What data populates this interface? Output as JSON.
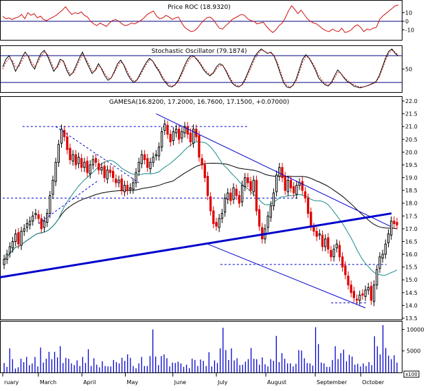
{
  "chart_data": [
    {
      "type": "line",
      "title": "Price ROC (18.9320)",
      "yticks": [
        10,
        0,
        -10
      ],
      "reference_line": 0,
      "ylim": [
        -20,
        20
      ],
      "series": [
        {
          "values": [
            6,
            3,
            4,
            2,
            4,
            5,
            8,
            3,
            10,
            7,
            9,
            4,
            6,
            2,
            1,
            3,
            5,
            7,
            10,
            13,
            17,
            12,
            8,
            10,
            9,
            11,
            7,
            5,
            0,
            -3,
            -5,
            -2,
            -4,
            -6,
            -2,
            1,
            2,
            0,
            -3,
            -5,
            -4,
            -2,
            -3,
            -1,
            1,
            4,
            8,
            10,
            12,
            6,
            3,
            4,
            7,
            5,
            2,
            4,
            5,
            -2,
            -7,
            -10,
            -12,
            -11,
            -8,
            -3,
            1,
            4,
            5,
            2,
            -3,
            -8,
            -9,
            -5,
            -2,
            2,
            4,
            6,
            8,
            7,
            3,
            1,
            0,
            -3,
            -2,
            -1,
            -6,
            -10,
            -13,
            -10,
            -5,
            -2,
            4,
            12,
            18,
            14,
            9,
            13,
            8,
            3,
            0,
            -2,
            -3,
            -6,
            -9,
            -11,
            -12,
            -9,
            -11,
            -12,
            -8,
            -13,
            -12,
            -10,
            -6,
            -4,
            -7,
            -12,
            -9,
            -10,
            -8,
            -7,
            2,
            6,
            9,
            12,
            15,
            18,
            18.9
          ]
        }
      ]
    },
    {
      "type": "line",
      "title": "Stochastic Oscillator (79.1874)",
      "yticks": [
        50
      ],
      "reference_lines": [
        80,
        20
      ],
      "ylim": [
        0,
        100
      ],
      "series": [
        {
          "values": [
            55,
            72,
            80,
            65,
            45,
            58,
            75,
            88,
            78,
            60,
            50,
            70,
            85,
            92,
            80,
            62,
            45,
            55,
            72,
            68,
            48,
            35,
            42,
            58,
            75,
            88,
            70,
            55,
            40,
            48,
            62,
            50,
            35,
            25,
            30,
            45,
            62,
            70,
            58,
            40,
            28,
            20,
            25,
            38,
            52,
            65,
            74,
            68,
            55,
            45,
            30,
            20,
            12,
            10,
            15,
            25,
            40,
            58,
            72,
            80,
            78,
            70,
            60,
            48,
            40,
            35,
            42,
            55,
            62,
            58,
            45,
            30,
            18,
            12,
            10,
            15,
            28,
            45,
            62,
            78,
            88,
            95,
            90,
            85,
            88,
            80,
            62,
            40,
            20,
            10,
            8,
            14,
            28,
            50,
            72,
            82,
            75,
            62,
            48,
            30,
            22,
            15,
            12,
            20,
            35,
            48,
            40,
            30,
            22,
            18,
            12,
            10,
            8,
            10,
            12,
            15,
            18,
            22,
            35,
            55,
            75,
            90,
            95,
            85,
            79.2
          ]
        },
        {
          "values": [
            50,
            65,
            74,
            70,
            55,
            55,
            68,
            80,
            80,
            66,
            56,
            64,
            78,
            88,
            84,
            68,
            52,
            52,
            66,
            68,
            54,
            40,
            40,
            52,
            68,
            82,
            74,
            60,
            46,
            46,
            56,
            52,
            40,
            30,
            30,
            42,
            56,
            66,
            60,
            46,
            32,
            24,
            25,
            34,
            48,
            60,
            70,
            68,
            58,
            48,
            34,
            24,
            16,
            12,
            14,
            22,
            36,
            52,
            66,
            76,
            78,
            72,
            63,
            52,
            43,
            38,
            40,
            50,
            58,
            57,
            48,
            34,
            22,
            15,
            12,
            14,
            24,
            40,
            56,
            72,
            84,
            92,
            90,
            86,
            86,
            81,
            66,
            46,
            26,
            14,
            10,
            13,
            24,
            44,
            65,
            78,
            76,
            65,
            52,
            36,
            26,
            18,
            14,
            18,
            30,
            42,
            40,
            32,
            25,
            20,
            15,
            12,
            10,
            10,
            12,
            14,
            17,
            21,
            32,
            50,
            70,
            85,
            92,
            88,
            81
          ]
        }
      ]
    },
    {
      "type": "candlestick",
      "title": "GAMESA(16.8200, 17.2000, 16.7600, 17.1500, +0.07000)",
      "ylim": [
        13.5,
        22.0
      ],
      "yticks": [
        22.0,
        21.5,
        21.0,
        20.5,
        20.0,
        19.5,
        19.0,
        18.5,
        18.0,
        17.5,
        17.0,
        16.5,
        16.0,
        15.5,
        15.0,
        14.5,
        14.0,
        13.5
      ],
      "closes": [
        15.8,
        16.0,
        16.3,
        16.5,
        16.8,
        16.4,
        16.9,
        17.0,
        17.2,
        17.3,
        17.5,
        17.6,
        17.4,
        17.0,
        17.3,
        17.6,
        18.3,
        18.9,
        19.6,
        20.3,
        20.9,
        20.6,
        20.1,
        19.7,
        19.9,
        19.5,
        19.8,
        19.4,
        19.6,
        19.2,
        19.5,
        19.7,
        19.6,
        19.3,
        19.4,
        19.0,
        19.3,
        19.2,
        19.0,
        18.8,
        18.9,
        18.5,
        18.7,
        18.5,
        18.6,
        18.8,
        19.2,
        19.6,
        19.9,
        19.7,
        19.4,
        19.6,
        19.8,
        19.9,
        20.2,
        20.8,
        21.1,
        20.7,
        20.4,
        20.8,
        20.9,
        20.5,
        20.8,
        21.0,
        20.7,
        20.4,
        20.9,
        20.6,
        19.8,
        19.5,
        19.0,
        18.3,
        17.7,
        17.2,
        17.1,
        17.4,
        17.6,
        18.2,
        18.4,
        18.1,
        18.6,
        18.3,
        18.0,
        18.7,
        19.0,
        18.8,
        18.5,
        18.9,
        17.7,
        17.1,
        16.6,
        17.0,
        17.5,
        17.9,
        18.4,
        19.1,
        19.4,
        19.0,
        18.5,
        18.9,
        18.6,
        18.4,
        18.7,
        18.8,
        18.5,
        18.2,
        17.6,
        17.1,
        16.9,
        16.7,
        16.8,
        16.3,
        16.6,
        16.2,
        15.9,
        16.2,
        16.4,
        15.9,
        15.5,
        15.2,
        14.8,
        14.5,
        14.3,
        14.2,
        14.4,
        14.4,
        14.6,
        14.7,
        14.2,
        14.8,
        15.4,
        15.9,
        16.0,
        16.4,
        16.8,
        17.3,
        17.2,
        17.15
      ],
      "moving_averages": [
        {
          "name": "",
          "color": "#000000"
        },
        {
          "name": "",
          "color": "#1a8a8a"
        }
      ],
      "horizontal_levels": [
        21.0,
        18.2,
        15.6,
        14.1
      ]
    },
    {
      "type": "bar",
      "title": "",
      "ylim": [
        0,
        11500
      ],
      "yticks": [
        10000,
        5000
      ],
      "unit_label": "x100",
      "values": [
        2200,
        1300,
        5600,
        3100,
        900,
        1200,
        3200,
        2400,
        3600,
        1700,
        2100,
        3600,
        1400,
        5800,
        2300,
        3200,
        4800,
        3100,
        4800,
        3500,
        6100,
        2200,
        3400,
        3200,
        2100,
        1700,
        2800,
        1500,
        3600,
        2200,
        5400,
        1500,
        3300,
        1800,
        1200,
        2600,
        1500,
        1400,
        1400,
        2900,
        2400,
        2100,
        3400,
        2700,
        4200,
        3400,
        1500,
        1000,
        2100,
        3600,
        1500,
        1500,
        3800,
        10000,
        3700,
        1700,
        3800,
        4200,
        3300,
        1400,
        2300,
        2200,
        2500,
        2100,
        1300,
        1800,
        1000,
        3200,
        2900,
        1500,
        3000,
        2700,
        1500,
        4700,
        1400,
        2800,
        2200,
        5600,
        10400,
        5200,
        2900,
        5600,
        2800,
        3300,
        1700,
        1800,
        2500,
        3100,
        5700,
        3200,
        3100,
        1800,
        3500,
        1900,
        1400,
        3100,
        2700,
        8500,
        2400,
        4500,
        3200,
        2100,
        2100,
        1400,
        2000,
        5200,
        5100,
        3300,
        2200,
        2100,
        1600,
        10500,
        6600,
        2300,
        2100,
        1300,
        1300,
        2900,
        6100,
        3100,
        4500,
        5300,
        2600,
        4100,
        3700,
        1800,
        2000,
        1400,
        2100,
        1500,
        2400,
        1700,
        8400,
        6100,
        4200,
        11000,
        5700,
        3900,
        3100,
        4000,
        2300
      ]
    }
  ],
  "x_labels": [
    "ruary",
    "March",
    "April",
    "May",
    "June",
    "July",
    "August",
    "September",
    "October"
  ],
  "colors": {
    "up_candle": "#000000",
    "down_candle": "#e00000",
    "roc_line": "#d01010",
    "frame_line": "#000080",
    "trend_line": "#0000cc",
    "level_line": "#0000cc",
    "volume_bar": "#0000cc"
  }
}
